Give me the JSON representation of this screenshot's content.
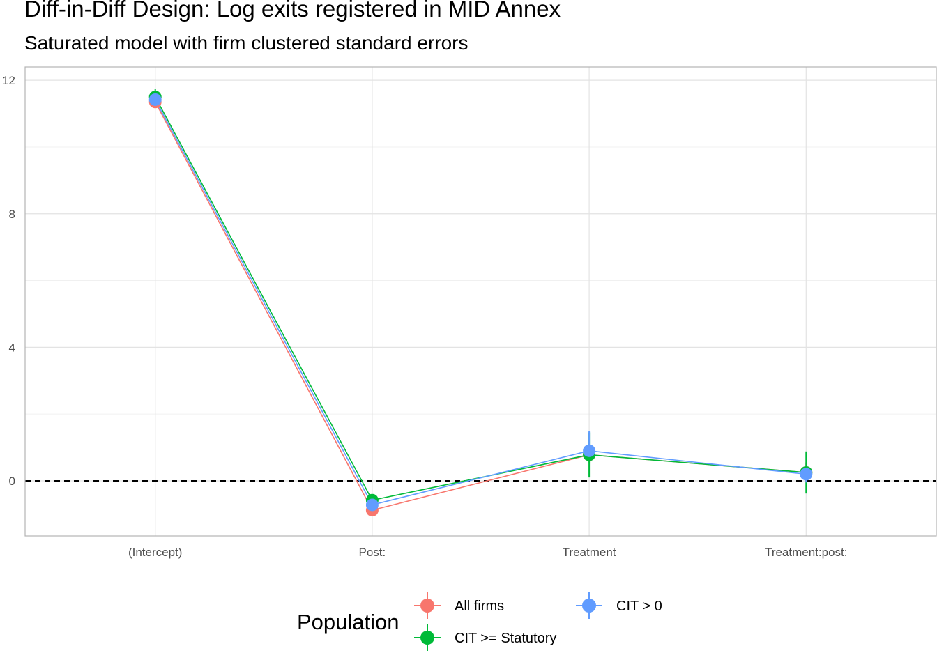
{
  "chart_data": {
    "type": "line",
    "title": "Diff-in-Diff Design: Log exits registered in MID Annex",
    "subtitle": "Saturated model with firm clustered standard errors",
    "xlabel": "",
    "ylabel": "",
    "categories": [
      "(Intercept)",
      "Post:",
      "Treatment",
      "Treatment:post:"
    ],
    "ylim": [
      -1.65,
      12.4
    ],
    "yticks": [
      0,
      4,
      8,
      12
    ],
    "grid": true,
    "reference_line": {
      "y": 0,
      "style": "dashed"
    },
    "legend": {
      "title": "Population",
      "position": "bottom"
    },
    "series": [
      {
        "name": "All firms",
        "color": "#F8766D",
        "values": [
          11.35,
          -0.88,
          0.78,
          0.25
        ],
        "lower": [
          11.25,
          -0.98,
          0.55,
          -0.05
        ],
        "upper": [
          11.45,
          -0.78,
          1.0,
          0.55
        ]
      },
      {
        "name": "CIT >= Statutory",
        "color": "#00BA38",
        "values": [
          11.5,
          -0.58,
          0.78,
          0.25
        ],
        "lower": [
          11.25,
          -0.7,
          0.1,
          -0.38
        ],
        "upper": [
          11.75,
          -0.46,
          1.45,
          0.88
        ]
      },
      {
        "name": "CIT > 0",
        "color": "#619CFF",
        "values": [
          11.42,
          -0.72,
          0.9,
          0.2
        ],
        "lower": [
          11.32,
          -0.82,
          0.6,
          -0.05
        ],
        "upper": [
          11.52,
          -0.62,
          1.5,
          0.45
        ]
      }
    ]
  }
}
